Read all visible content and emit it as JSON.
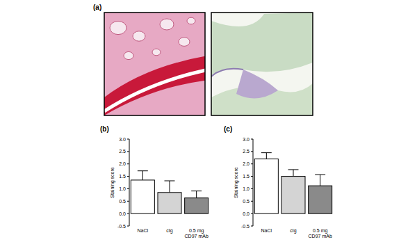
{
  "figure_a": {
    "label": "(a)"
  },
  "chart_data": [
    {
      "type": "bar",
      "title": "(b)",
      "y_label": "Staining score",
      "categories": [
        "NaCl",
        "cIg",
        "0.5 mg\nCD97 mAb"
      ],
      "values": [
        1.35,
        0.85,
        0.63
      ],
      "errors": [
        0.37,
        0.47,
        0.28
      ],
      "colors": [
        "#ffffff",
        "#d4d4d4",
        "#8a8a8a"
      ],
      "ylim": [
        -0.5,
        3.0
      ],
      "yticks": [
        -0.5,
        {
          "value": 0,
          "label": "0.0"
        },
        0.5,
        {
          "value": 1,
          "label": "1.0"
        },
        1.5,
        {
          "value": 2,
          "label": "2.0"
        },
        2.5,
        {
          "value": 3,
          "label": "3.0"
        }
      ],
      "grid": false
    },
    {
      "type": "bar",
      "title": "(c)",
      "y_label": "Staining score",
      "categories": [
        "NaCl",
        "cIg",
        "0.5 mg\nCD97 mAb"
      ],
      "values": [
        2.2,
        1.5,
        1.12
      ],
      "errors": [
        0.25,
        0.27,
        0.45
      ],
      "colors": [
        "#ffffff",
        "#d4d4d4",
        "#8a8a8a"
      ],
      "ylim": [
        -0.5,
        3.0
      ],
      "yticks": [
        -0.5,
        {
          "value": 0,
          "label": "0.0"
        },
        0.5,
        {
          "value": 1,
          "label": "1.0"
        },
        1.5,
        {
          "value": 2,
          "label": "2.0"
        },
        2.5,
        {
          "value": 3,
          "label": "3.0"
        }
      ],
      "grid": false
    }
  ]
}
